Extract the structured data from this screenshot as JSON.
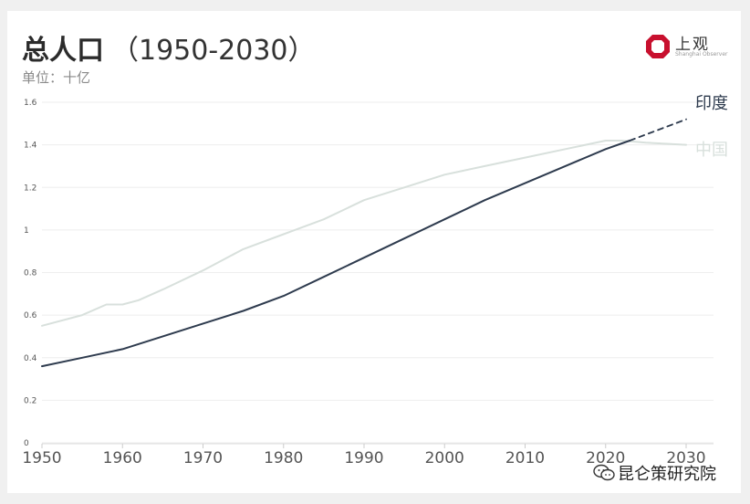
{
  "header": {
    "title": "总人口",
    "title_range": "（1950-2030）",
    "subtitle": "单位：十亿"
  },
  "logo": {
    "name": "上观",
    "sub": "Shanghai Observer",
    "color": "#c8102e"
  },
  "watermark": {
    "text": "昆仑策研究院"
  },
  "colors": {
    "india": "#2e3b4e",
    "china": "#d8e0dc",
    "grid": "#eeeeee",
    "axis_text": "#555555"
  },
  "chart_data": {
    "type": "line",
    "title": "总人口（1950-2030）",
    "ylabel": "单位：十亿",
    "xlim": [
      1950,
      2030
    ],
    "ylim": [
      0,
      1.6
    ],
    "x_ticks": [
      "1950",
      "1960",
      "1970",
      "1980",
      "1990",
      "2000",
      "2010",
      "2020",
      "2030"
    ],
    "y_ticks": [
      "0",
      "0.2",
      "0.4",
      "0.6",
      "0.8",
      "1",
      "1.2",
      "1.4",
      "1.6"
    ],
    "grid": true,
    "series": [
      {
        "name": "印度",
        "color": "#2e3b4e",
        "x": [
          1950,
          1955,
          1960,
          1965,
          1970,
          1975,
          1980,
          1985,
          1990,
          1995,
          2000,
          2005,
          2010,
          2015,
          2020,
          2023
        ],
        "y": [
          0.36,
          0.4,
          0.44,
          0.5,
          0.56,
          0.62,
          0.69,
          0.78,
          0.87,
          0.96,
          1.05,
          1.14,
          1.22,
          1.3,
          1.38,
          1.42
        ]
      },
      {
        "name": "印度 (projected)",
        "color": "#2e3b4e",
        "dashed": true,
        "x": [
          2023,
          2030
        ],
        "y": [
          1.42,
          1.52
        ]
      },
      {
        "name": "中国",
        "color": "#d8e0dc",
        "x": [
          1950,
          1955,
          1958,
          1960,
          1962,
          1965,
          1970,
          1975,
          1980,
          1985,
          1990,
          1995,
          2000,
          2005,
          2010,
          2015,
          2020,
          2022,
          2025,
          2030
        ],
        "y": [
          0.55,
          0.6,
          0.65,
          0.65,
          0.67,
          0.72,
          0.81,
          0.91,
          0.98,
          1.05,
          1.14,
          1.2,
          1.26,
          1.3,
          1.34,
          1.38,
          1.42,
          1.42,
          1.41,
          1.4
        ]
      }
    ],
    "labels": [
      {
        "text": "印度",
        "series": "印度"
      },
      {
        "text": "中国",
        "series": "中国"
      }
    ]
  }
}
